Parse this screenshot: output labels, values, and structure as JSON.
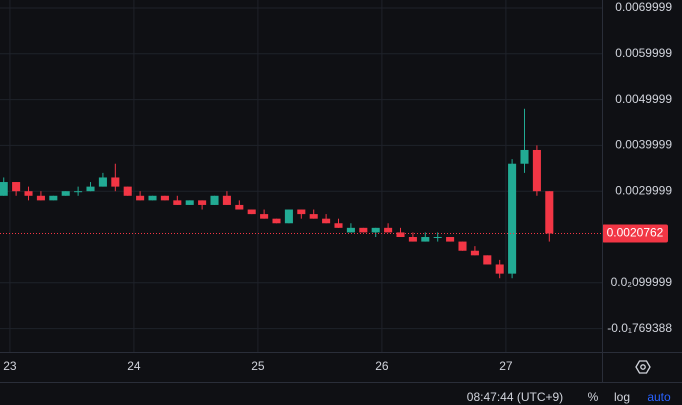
{
  "chart_data": {
    "type": "candlestick",
    "x": [
      22.95,
      23.05,
      23.15,
      23.25,
      23.35,
      23.45,
      23.55,
      23.65,
      23.75,
      23.85,
      23.95,
      24.05,
      24.15,
      24.25,
      24.35,
      24.45,
      24.55,
      24.65,
      24.75,
      24.85,
      24.95,
      25.05,
      25.15,
      25.25,
      25.35,
      25.45,
      25.55,
      25.65,
      25.75,
      25.85,
      25.95,
      26.05,
      26.15,
      26.25,
      26.35,
      26.45,
      26.55,
      26.65,
      26.75,
      26.85,
      26.95,
      27.05,
      27.15,
      27.25,
      27.35
    ],
    "open": [
      0.0029,
      0.0032,
      0.003,
      0.0029,
      0.0028,
      0.0029,
      0.003,
      0.003,
      0.0031,
      0.0033,
      0.0031,
      0.0029,
      0.0028,
      0.0029,
      0.0028,
      0.0027,
      0.0028,
      0.0027,
      0.0029,
      0.0027,
      0.0026,
      0.0025,
      0.0024,
      0.0023,
      0.0026,
      0.0025,
      0.0024,
      0.0023,
      0.0021,
      0.0022,
      0.0021,
      0.0022,
      0.0021,
      0.002,
      0.0019,
      0.002,
      0.002,
      0.0019,
      0.0017,
      0.0016,
      0.0014,
      0.0012,
      0.0036,
      0.0039,
      0.003
    ],
    "high": [
      0.0033,
      0.0032,
      0.0031,
      0.003,
      0.0029,
      0.003,
      0.0031,
      0.0032,
      0.0034,
      0.0036,
      0.0031,
      0.003,
      0.0029,
      0.0029,
      0.0029,
      0.0028,
      0.0028,
      0.0029,
      0.003,
      0.0028,
      0.0026,
      0.0026,
      0.0024,
      0.0026,
      0.0026,
      0.0026,
      0.0025,
      0.0024,
      0.0023,
      0.0022,
      0.0022,
      0.0023,
      0.0022,
      0.0021,
      0.0021,
      0.0021,
      0.002,
      0.0019,
      0.0018,
      0.0016,
      0.0015,
      0.0037,
      0.0048,
      0.004,
      0.003
    ],
    "low": [
      0.0029,
      0.0029,
      0.0028,
      0.0028,
      0.0028,
      0.0029,
      0.0029,
      0.003,
      0.0031,
      0.003,
      0.0029,
      0.0028,
      0.0028,
      0.0028,
      0.0027,
      0.0027,
      0.0026,
      0.0027,
      0.0027,
      0.0026,
      0.0025,
      0.0024,
      0.0023,
      0.0023,
      0.0024,
      0.0024,
      0.0023,
      0.0022,
      0.0021,
      0.0021,
      0.002,
      0.0021,
      0.002,
      0.0019,
      0.0019,
      0.0019,
      0.0019,
      0.0017,
      0.0016,
      0.0014,
      0.0011,
      0.0011,
      0.0034,
      0.0029,
      0.0019
    ],
    "close": [
      0.0032,
      0.003,
      0.0029,
      0.0028,
      0.0029,
      0.003,
      0.003,
      0.0031,
      0.0033,
      0.0031,
      0.0029,
      0.0028,
      0.0029,
      0.0028,
      0.0027,
      0.0028,
      0.0027,
      0.0029,
      0.0027,
      0.0026,
      0.0025,
      0.0024,
      0.0023,
      0.0026,
      0.0025,
      0.0024,
      0.0023,
      0.0022,
      0.0022,
      0.0021,
      0.0022,
      0.0021,
      0.002,
      0.0019,
      0.002,
      0.002,
      0.0019,
      0.0017,
      0.0016,
      0.0014,
      0.0012,
      0.0036,
      0.0039,
      0.003,
      0.0020762
    ],
    "up_color": "#22ab94",
    "down_color": "#f23645",
    "xlim": [
      22.92,
      27.775
    ],
    "xticks": [
      23,
      24,
      25,
      26,
      27
    ],
    "ylim": [
      -0.0005109,
      0.0071746
    ],
    "yticks": [
      {
        "value": 0.0069999,
        "label": "0.0069999"
      },
      {
        "value": 0.0059999,
        "label": "0.0059999"
      },
      {
        "value": 0.0049999,
        "label": "0.0049999"
      },
      {
        "value": 0.0039999,
        "label": "0.0039999"
      },
      {
        "value": 0.0029999,
        "label": "0.0029999"
      },
      {
        "value": 0.00099999,
        "label": "0.0₂099999"
      },
      {
        "value": -1e-08,
        "label": "-0.0₁769388"
      }
    ],
    "grid": true,
    "log_scale": false
  },
  "toolbar": {
    "time": "08:47:44 (UTC+9)",
    "percent": "%",
    "log": "log",
    "auto": "auto"
  }
}
